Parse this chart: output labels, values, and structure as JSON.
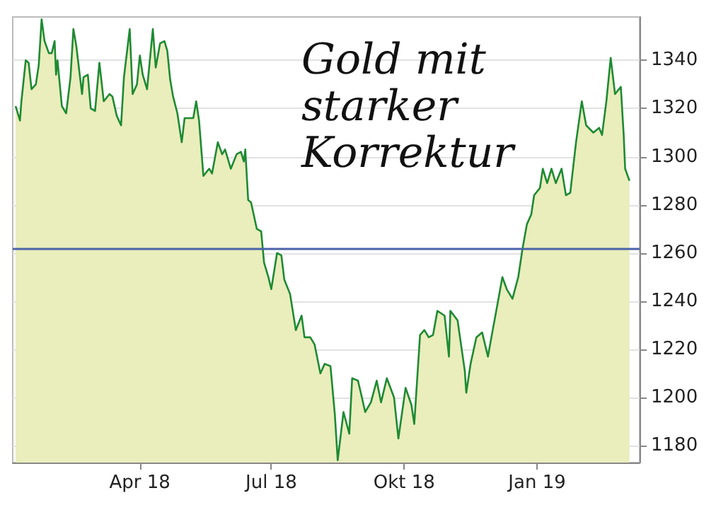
{
  "chart_data": {
    "type": "area",
    "title": "Gold mit starker Korrektur",
    "x": [
      "2018-01-05",
      "2018-01-08",
      "2018-01-09",
      "2018-01-12",
      "2018-01-14",
      "2018-01-16",
      "2018-01-19",
      "2018-01-21",
      "2018-01-23",
      "2018-01-25",
      "2018-01-28",
      "2018-01-30",
      "2018-02-01",
      "2018-02-02",
      "2018-02-03",
      "2018-02-06",
      "2018-02-09",
      "2018-02-12",
      "2018-02-14",
      "2018-02-16",
      "2018-02-20",
      "2018-02-21",
      "2018-02-24",
      "2018-02-26",
      "2018-03-01",
      "2018-03-04",
      "2018-03-07",
      "2018-03-11",
      "2018-03-13",
      "2018-03-16",
      "2018-03-19",
      "2018-03-21",
      "2018-03-25",
      "2018-03-27",
      "2018-03-30",
      "2018-04-01",
      "2018-04-03",
      "2018-04-06",
      "2018-04-10",
      "2018-04-12",
      "2018-04-15",
      "2018-04-18",
      "2018-04-20",
      "2018-04-22",
      "2018-04-24",
      "2018-04-27",
      "2018-04-30",
      "2018-05-02",
      "2018-05-06",
      "2018-05-08",
      "2018-05-10",
      "2018-05-12",
      "2018-05-15",
      "2018-05-19",
      "2018-05-21",
      "2018-05-25",
      "2018-05-28",
      "2018-05-30",
      "2018-06-03",
      "2018-06-07",
      "2018-06-10",
      "2018-06-12",
      "2018-06-13",
      "2018-06-15",
      "2018-06-17",
      "2018-06-21",
      "2018-06-24",
      "2018-06-26",
      "2018-06-29",
      "2018-07-01",
      "2018-07-05",
      "2018-07-08",
      "2018-07-10",
      "2018-07-14",
      "2018-07-18",
      "2018-07-22",
      "2018-07-24",
      "2018-07-28",
      "2018-07-31",
      "2018-08-04",
      "2018-08-07",
      "2018-08-11",
      "2018-08-14",
      "2018-08-16",
      "2018-08-20",
      "2018-08-24",
      "2018-08-26",
      "2018-08-30",
      "2018-09-01",
      "2018-09-04",
      "2018-09-08",
      "2018-09-12",
      "2018-09-15",
      "2018-09-19",
      "2018-09-24",
      "2018-09-27",
      "2018-10-02",
      "2018-10-06",
      "2018-10-08",
      "2018-10-12",
      "2018-10-15",
      "2018-10-18",
      "2018-10-21",
      "2018-10-24",
      "2018-10-29",
      "2018-11-01",
      "2018-11-02",
      "2018-11-07",
      "2018-11-12",
      "2018-11-13",
      "2018-11-16",
      "2018-11-20",
      "2018-11-24",
      "2018-11-28",
      "2018-12-01",
      "2018-12-05",
      "2018-12-08",
      "2018-12-11",
      "2018-12-15",
      "2018-12-19",
      "2018-12-22",
      "2018-12-25",
      "2018-12-28",
      "2018-12-30",
      "2019-01-03",
      "2019-01-05",
      "2019-01-08",
      "2019-01-11",
      "2019-01-14",
      "2019-01-18",
      "2019-01-21",
      "2019-01-24",
      "2019-01-28",
      "2019-02-01",
      "2019-02-04",
      "2019-02-09",
      "2019-02-13",
      "2019-02-15",
      "2019-02-18",
      "2019-02-21",
      "2019-02-24",
      "2019-02-28",
      "2019-03-02",
      "2019-03-03",
      "2019-03-06"
    ],
    "series": [
      {
        "color": "#1e8a33",
        "values": [
          1321,
          1315,
          1323,
          1340,
          1339,
          1328,
          1330,
          1338,
          1357,
          1348,
          1343,
          1343,
          1348,
          1334,
          1340,
          1321,
          1318,
          1333,
          1353,
          1346,
          1326,
          1333,
          1334,
          1320,
          1319,
          1339,
          1323,
          1326,
          1325,
          1317,
          1313,
          1333,
          1353,
          1326,
          1330,
          1342,
          1334,
          1328,
          1353,
          1337,
          1347,
          1348,
          1344,
          1332,
          1325,
          1318,
          1306,
          1316,
          1316,
          1316,
          1323,
          1315,
          1292,
          1295,
          1293,
          1306,
          1301,
          1303,
          1295,
          1301,
          1302,
          1298,
          1303,
          1282,
          1281,
          1270,
          1269,
          1256,
          1250,
          1245,
          1260,
          1259,
          1249,
          1243,
          1228,
          1234,
          1225,
          1225,
          1222,
          1210,
          1214,
          1213,
          1193,
          1174,
          1194,
          1185,
          1208,
          1207,
          1202,
          1194,
          1198,
          1207,
          1198,
          1208,
          1200,
          1183,
          1204,
          1197,
          1189,
          1226,
          1228,
          1225,
          1226,
          1236,
          1234,
          1217,
          1236,
          1232,
          1211,
          1202,
          1214,
          1225,
          1227,
          1217,
          1227,
          1240,
          1250,
          1245,
          1241,
          1250,
          1262,
          1272,
          1276,
          1284,
          1287,
          1295,
          1289,
          1295,
          1289,
          1295,
          1284,
          1285,
          1306,
          1323,
          1313,
          1310,
          1312,
          1309,
          1323,
          1341,
          1326,
          1329,
          1309,
          1295,
          1290
        ]
      }
    ],
    "xlim": [
      "2018-01-03",
      "2019-03-13"
    ],
    "xticks": [
      {
        "value": "2018-04-01",
        "label": "Apr 18"
      },
      {
        "value": "2018-07-01",
        "label": "Jul 18"
      },
      {
        "value": "2018-10-01",
        "label": "Okt 18"
      },
      {
        "value": "2019-01-01",
        "label": "Jan 19"
      }
    ],
    "ylim": [
      1173,
      1358
    ],
    "yticks": [
      1180,
      1200,
      1220,
      1240,
      1260,
      1280,
      1300,
      1320,
      1340
    ],
    "ref_lines": [
      {
        "axis": "y",
        "value": 1262,
        "color": "#4a63a8"
      }
    ],
    "grid": "y"
  }
}
